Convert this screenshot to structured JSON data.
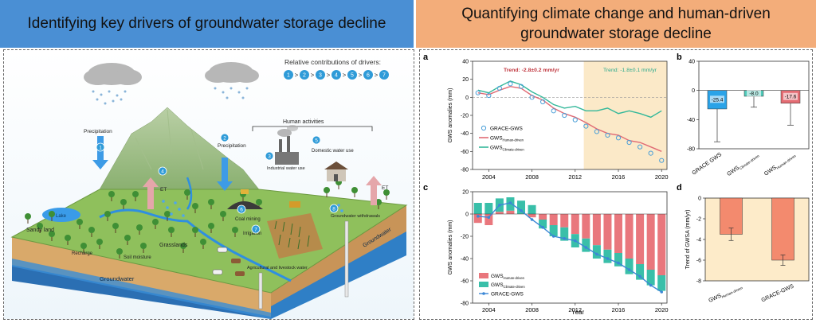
{
  "headers": {
    "left": "Identifying key drivers of groundwater storage decline",
    "right_line1": "Quantifying climate change and human-driven",
    "right_line2": "groundwater storage decline"
  },
  "diagram": {
    "contrib_title": "Relative contributions of drivers:",
    "contrib_order": [
      "1",
      "2",
      "3",
      "4",
      "5",
      "6",
      "7"
    ],
    "labels": {
      "precipitation_left": "Precipitation",
      "precipitation_right": "Precipitation",
      "et_left": "ET",
      "et_right": "ET",
      "human_activities": "Human activities",
      "industrial": "Industrial water use",
      "domestic": "Domestic water use",
      "coal_mining": "Coal mining",
      "irrigation": "Irrigation",
      "agri_livestock": "Agricultural and livestock water",
      "gw_withdrawals": "Groundwater withdrawals",
      "lake": "Lake",
      "sandy_land": "Sandy land",
      "grasslands": "Grasslands",
      "recharge": "Recharge",
      "soil_moisture": "Soil moisture",
      "groundwater": "Groundwater",
      "groundwater_side": "Groundwater"
    },
    "badges": {
      "precip_left": "1",
      "precip_right": "2",
      "et_left": "4",
      "industrial": "3",
      "domestic": "5",
      "coal": "6",
      "irrigation": "7",
      "withdrawals": "8"
    }
  },
  "chart_data": [
    {
      "id": "a",
      "type": "line",
      "panel_label": "a",
      "ylabel": "GWS anomalies (mm)",
      "xlim": [
        2002.5,
        2020.5
      ],
      "ylim": [
        -80,
        40
      ],
      "xticks": [
        "2004",
        "2008",
        "2012",
        "2016",
        "2020"
      ],
      "yticks": [
        "-80",
        "-60",
        "-40",
        "-20",
        "0",
        "20",
        "40"
      ],
      "annotations": [
        "Trend: -2.8±0.2 mm/yr",
        "Trend: -1.8±0.1 mm/yr"
      ],
      "shaded_range": [
        2012.8,
        2020.5
      ],
      "legend": [
        "GRACE-GWS",
        "GWS",
        "GWS"
      ],
      "legend_sub": [
        "",
        "Human-driven",
        "Climate-driven"
      ],
      "series": [
        {
          "name": "GRACE-GWS",
          "color": "#4a9fd8",
          "x": [
            2003,
            2004,
            2005,
            2006,
            2007,
            2008,
            2009,
            2010,
            2011,
            2012,
            2013,
            2014,
            2015,
            2016,
            2017,
            2018,
            2019,
            2020
          ],
          "values": [
            5,
            2,
            10,
            15,
            12,
            0,
            -5,
            -15,
            -20,
            -25,
            -32,
            -38,
            -42,
            -45,
            -50,
            -55,
            -62,
            -70
          ]
        },
        {
          "name": "GWS",
          "color": "#e06a74",
          "x": [
            2003,
            2004,
            2005,
            2006,
            2007,
            2008,
            2009,
            2010,
            2011,
            2012,
            2013,
            2014,
            2015,
            2016,
            2017,
            2018,
            2019,
            2020
          ],
          "values": [
            5,
            3,
            8,
            12,
            10,
            2,
            -3,
            -12,
            -18,
            -22,
            -28,
            -35,
            -40,
            -42,
            -48,
            -50,
            -55,
            -60
          ]
        },
        {
          "name": "GWS",
          "color": "#33b89a",
          "x": [
            2003,
            2004,
            2005,
            2006,
            2007,
            2008,
            2009,
            2010,
            2011,
            2012,
            2013,
            2014,
            2015,
            2016,
            2017,
            2018,
            2019,
            2020
          ],
          "values": [
            8,
            5,
            12,
            18,
            14,
            6,
            0,
            -8,
            -12,
            -10,
            -15,
            -15,
            -12,
            -18,
            -15,
            -18,
            -22,
            -15
          ]
        }
      ]
    },
    {
      "id": "b",
      "type": "bar",
      "panel_label": "b",
      "categories": [
        "GRACE GWS",
        "GWS",
        "GWS"
      ],
      "category_sub": [
        "",
        "Climate-driven",
        "Human-driven"
      ],
      "values": [
        -25.4,
        -8.0,
        -17.6
      ],
      "value_labels": [
        "-25.4",
        "-8.0",
        "-17.6"
      ],
      "errors": [
        45,
        15,
        30
      ],
      "colors": [
        "#2aa3e8",
        "#4ec9b9",
        "#e46c73"
      ],
      "ylim": [
        -80,
        40
      ],
      "yticks": [
        "-80",
        "-40",
        "0",
        "40"
      ]
    },
    {
      "id": "c",
      "type": "bar",
      "panel_label": "c",
      "xlabel": "Year",
      "ylabel": "GWS anomalies (mm)",
      "xlim": [
        2002.5,
        2020.5
      ],
      "ylim": [
        -80,
        20
      ],
      "xticks": [
        "2004",
        "2008",
        "2012",
        "2016",
        "2020"
      ],
      "yticks": [
        "-80",
        "-60",
        "-40",
        "-20",
        "0",
        "20"
      ],
      "legend": [
        "GWS",
        "GWS",
        "GRACE-GWS"
      ],
      "legend_sub": [
        "Human-driven",
        "Climate-driven",
        ""
      ],
      "x": [
        2003,
        2004,
        2005,
        2006,
        2007,
        2008,
        2009,
        2010,
        2011,
        2012,
        2013,
        2014,
        2015,
        2016,
        2017,
        2018,
        2019,
        2020
      ],
      "series": [
        {
          "name": "GWS",
          "color": "#e9777d",
          "values": [
            -8,
            -10,
            2,
            3,
            0,
            -3,
            -5,
            -10,
            -12,
            -18,
            -22,
            -28,
            -32,
            -35,
            -40,
            -45,
            -50,
            -55
          ]
        },
        {
          "name": "GWS",
          "color": "#39bfa9",
          "values": [
            10,
            10,
            12,
            12,
            12,
            8,
            -8,
            -10,
            -12,
            -12,
            -12,
            -12,
            -12,
            -12,
            -14,
            -14,
            -14,
            -14
          ]
        }
      ],
      "line": {
        "name": "GRACE-GWS",
        "color": "#3b87d6",
        "values": [
          -2,
          -3,
          8,
          10,
          3,
          -5,
          -12,
          -20,
          -22,
          -24,
          -30,
          -36,
          -40,
          -44,
          -50,
          -56,
          -64,
          -70
        ]
      }
    },
    {
      "id": "d",
      "type": "bar",
      "panel_label": "d",
      "ylabel": "Trend of GWSA (mm/yr)",
      "categories": [
        "GWS",
        "GRACE-GWS"
      ],
      "category_sub": [
        "Human-driven",
        ""
      ],
      "values": [
        -3.5,
        -6.0
      ],
      "errors": [
        0.6,
        0.5
      ],
      "color": "#f38a6e",
      "ylim": [
        -8,
        0
      ],
      "yticks": [
        "-8",
        "-6",
        "-4",
        "-2",
        "0"
      ]
    }
  ]
}
